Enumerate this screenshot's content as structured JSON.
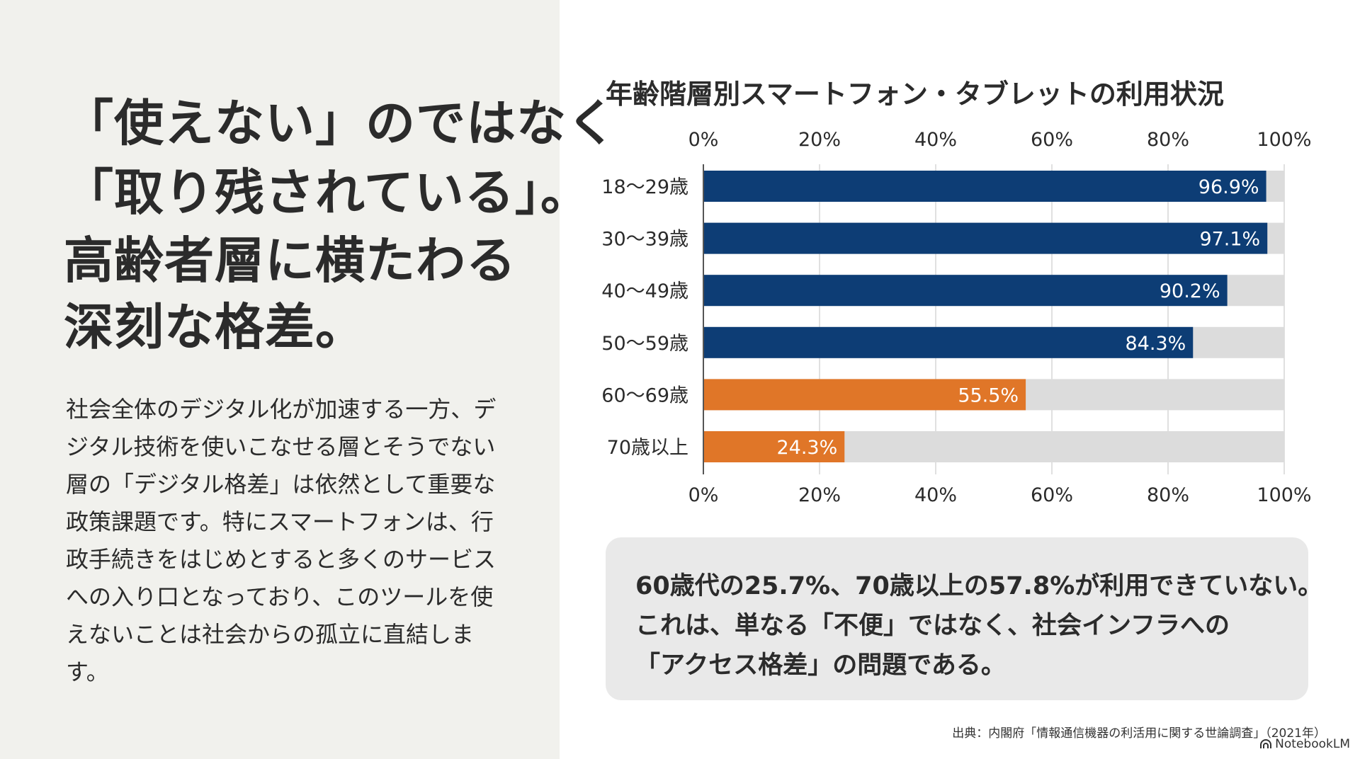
{
  "headline": [
    "「使えない」のではなく",
    "「取り残されている」。",
    "高齢者層に横たわる",
    "深刻な格差。"
  ],
  "body": [
    "社会全体のデジタル化が加速する一方、デ",
    "ジタル技術を使いこなせる層とそうでない",
    "層の「デジタル格差」は依然として重要な",
    "政策課題です。特にスマートフォンは、行",
    "政手続きをはじめとすると多くのサービス",
    "への入り口となっており、このツールを使",
    "えないことは社会からの孤立に直結しま",
    "す。"
  ],
  "chart_data": {
    "type": "bar",
    "orientation": "horizontal",
    "title": "年齢階層別スマートフォン・タブレットの利用状況",
    "categories": [
      "18〜29歳",
      "30〜39歳",
      "40〜49歳",
      "50〜59歳",
      "60〜69歳",
      "70歳以上"
    ],
    "values": [
      96.9,
      97.1,
      90.2,
      84.3,
      55.5,
      24.3
    ],
    "value_labels": [
      "96.9%",
      "97.1%",
      "90.2%",
      "84.3%",
      "55.5%",
      "24.3%"
    ],
    "xlim": [
      0,
      100
    ],
    "ticks": [
      "0%",
      "20%",
      "40%",
      "60%",
      "80%",
      "100%"
    ],
    "tick_values": [
      0,
      20,
      40,
      60,
      80,
      100
    ],
    "colors": [
      "#0d3d75",
      "#0d3d75",
      "#0d3d75",
      "#0d3d75",
      "#e07628",
      "#e07628"
    ],
    "track_color": "#dcdcdc",
    "grid": true
  },
  "callout": [
    "60歳代の25.7%、70歳以上の57.8%が利用できていない。",
    "これは、単なる「不便」ではなく、社会インフラへの",
    "「アクセス格差」の問題である。"
  ],
  "source": "出典：内閣府「情報通信機器の利活用に関する世論調査」（2021年）",
  "logo": "NotebookLM"
}
